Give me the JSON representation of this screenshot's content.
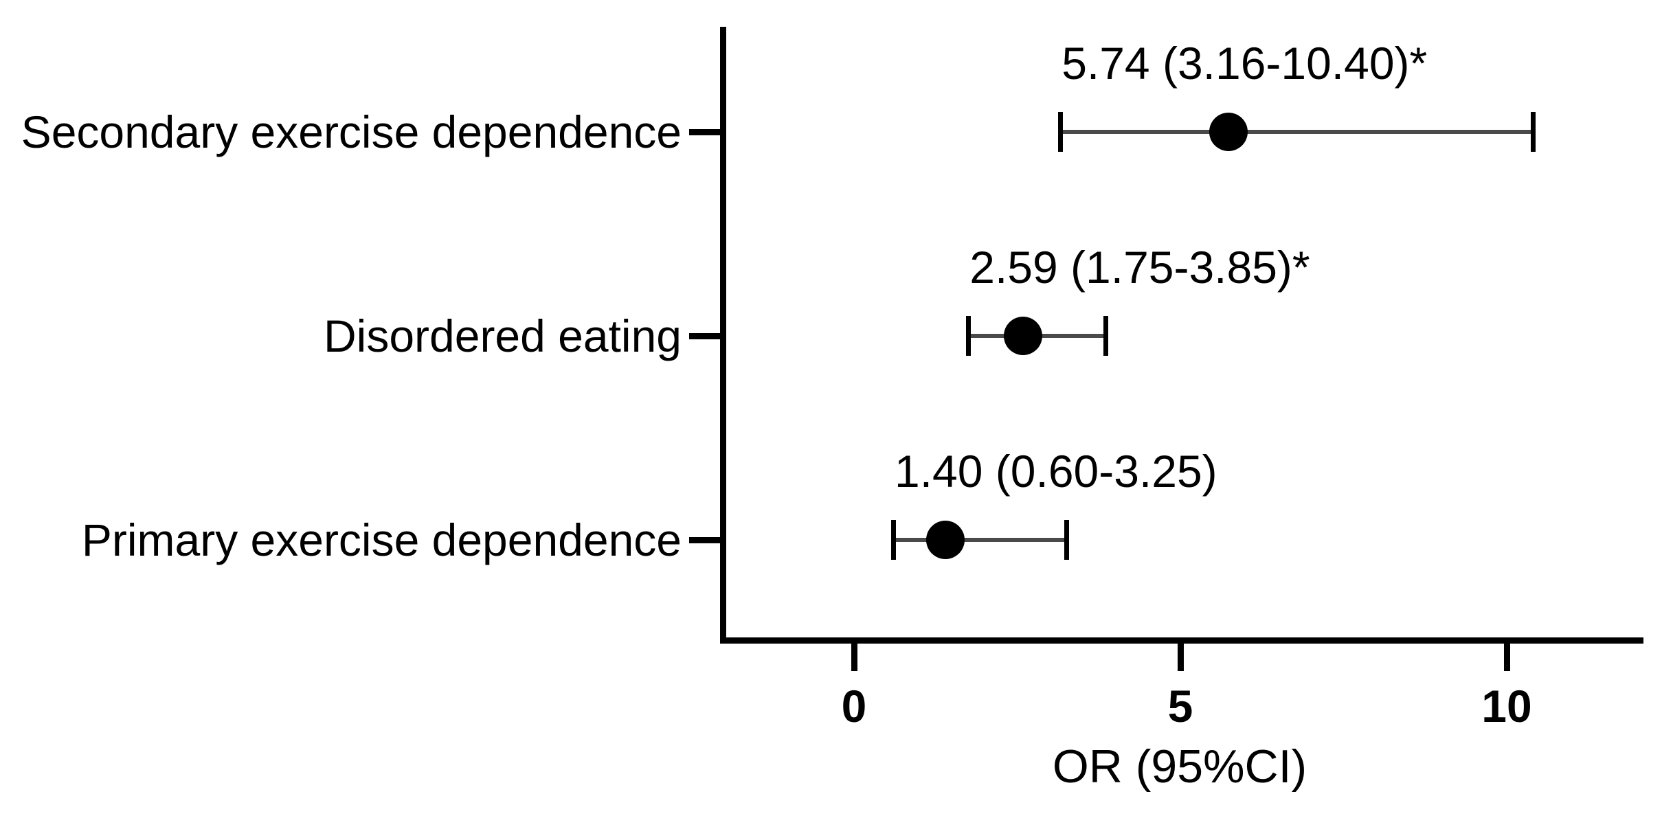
{
  "chart_data": {
    "type": "scatter",
    "variant": "forest-plot",
    "title": "",
    "xlabel": "OR (95%CI)",
    "ylabel": "",
    "xlim": [
      -2,
      12.1
    ],
    "xticks": [
      0,
      5,
      10
    ],
    "xtick_labels": [
      "0",
      "5",
      "10"
    ],
    "grid": false,
    "legend": "none",
    "categories": [
      "Secondary exercise dependence",
      "Disordered eating",
      "Primary exercise dependence"
    ],
    "series": [
      {
        "name": "OR (95%CI)",
        "points": [
          {
            "category": "Secondary exercise dependence",
            "or": 5.74,
            "ci_low": 3.16,
            "ci_high": 10.4,
            "significant": true,
            "annotation": "5.74 (3.16-10.40)*"
          },
          {
            "category": "Disordered eating",
            "or": 2.59,
            "ci_low": 1.75,
            "ci_high": 3.85,
            "significant": true,
            "annotation": "2.59 (1.75-3.85)*"
          },
          {
            "category": "Primary exercise dependence",
            "or": 1.4,
            "ci_low": 0.6,
            "ci_high": 3.25,
            "significant": false,
            "annotation": "1.40 (0.60-3.25)"
          }
        ]
      }
    ],
    "colors": {
      "background": "#ffffff",
      "axis": "#000000",
      "text": "#000000",
      "marker": "#000000",
      "error_line": "#4a4a4a",
      "error_cap": "#000000"
    }
  }
}
